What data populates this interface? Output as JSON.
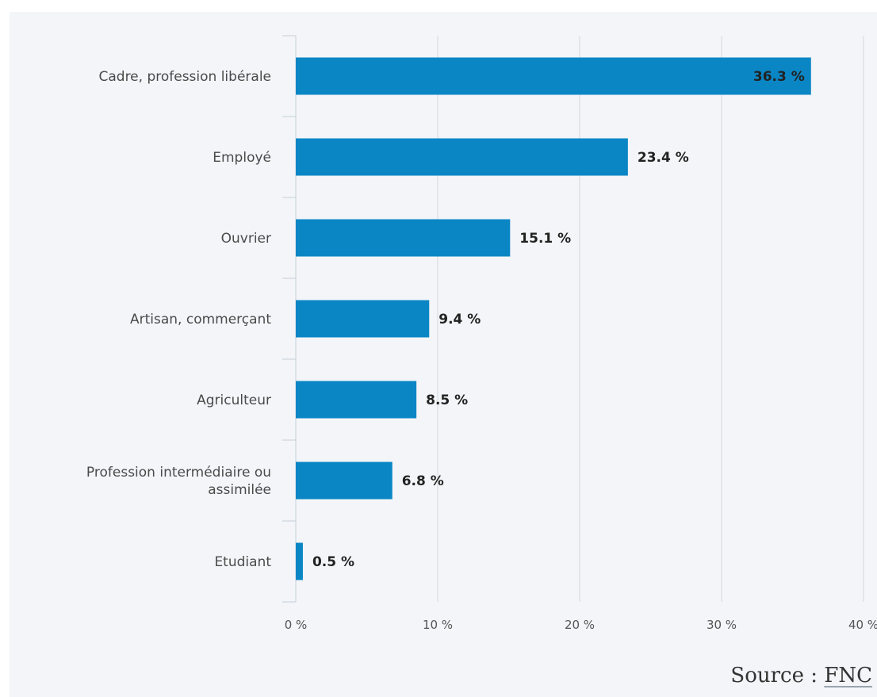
{
  "chart_data": {
    "type": "bar",
    "orientation": "horizontal",
    "categories": [
      [
        "Cadre, profession libérale"
      ],
      [
        "Employé"
      ],
      [
        "Ouvrier"
      ],
      [
        "Artisan, commerçant"
      ],
      [
        "Agriculteur"
      ],
      [
        "Profession intermédiaire ou",
        "assimilée"
      ],
      [
        "Etudiant"
      ]
    ],
    "values": [
      36.3,
      23.4,
      15.1,
      9.4,
      8.5,
      6.8,
      0.5
    ],
    "value_labels": [
      "36.3 %",
      "23.4 %",
      "15.1 %",
      "9.4 %",
      "8.5 %",
      "6.8 %",
      "0.5 %"
    ],
    "xlim": [
      0,
      40
    ],
    "ticks": [
      0,
      10,
      20,
      30,
      40
    ],
    "tick_labels": [
      "0 %",
      "10 %",
      "20 %",
      "30 %",
      "40 %"
    ],
    "grid": true,
    "bar_color": "#0a86c5",
    "title": "",
    "xlabel": "",
    "ylabel": ""
  },
  "source": {
    "label": "Source :",
    "link_text": "FNC"
  }
}
